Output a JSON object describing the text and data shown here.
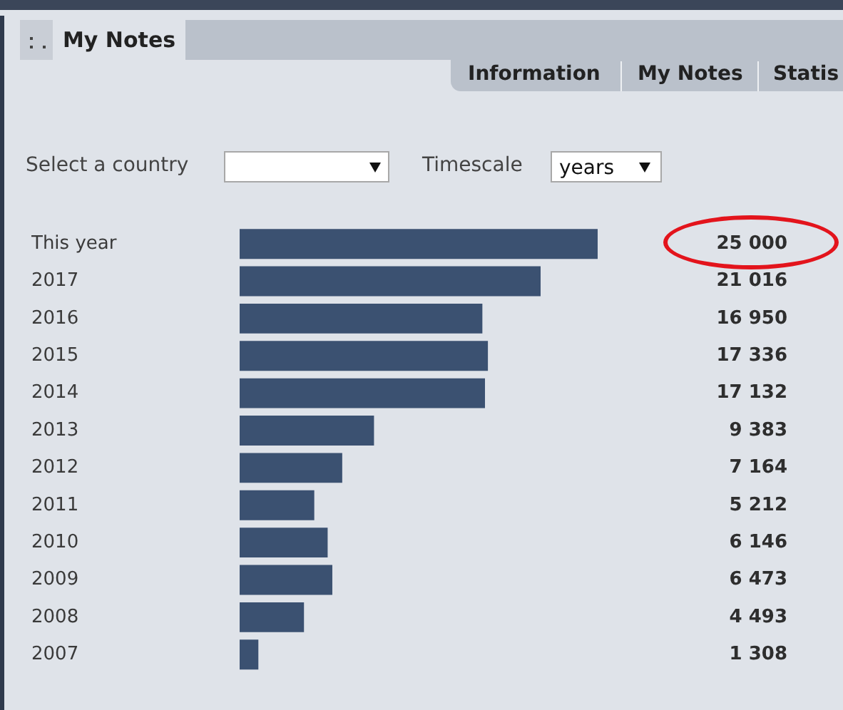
{
  "chart_data": {
    "type": "bar",
    "orientation": "horizontal",
    "categories": [
      "This year",
      "2017",
      "2016",
      "2015",
      "2014",
      "2013",
      "2012",
      "2011",
      "2010",
      "2009",
      "2008",
      "2007"
    ],
    "values": [
      25000,
      21016,
      16950,
      17336,
      17132,
      9383,
      7164,
      5212,
      6146,
      6473,
      4493,
      1308
    ],
    "value_labels": [
      "25 000",
      "21 016",
      "16 950",
      "17 336",
      "17 132",
      "9 383",
      "7 164",
      "5 212",
      "6 146",
      "6 473",
      "4 493",
      "1 308"
    ],
    "color": "#3b5171",
    "annotations": [
      "My Notes",
      "Information",
      "My Notes",
      "Statis",
      "Select a country",
      "Timescale",
      "years"
    ]
  }
}
